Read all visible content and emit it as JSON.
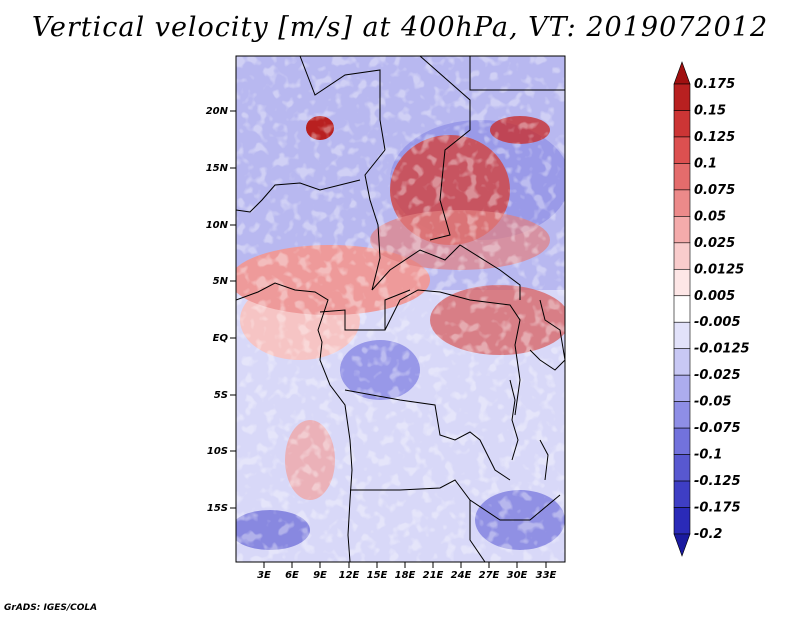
{
  "title": "Vertical velocity [m/s] at 400hPa, VT: 2019072012",
  "credit": "GrADS: IGES/COLA",
  "map": {
    "lon_range": [
      0,
      35
    ],
    "lat_range": [
      -20,
      25
    ],
    "lat_ticks": [
      "20N",
      "15N",
      "10N",
      "5N",
      "EQ",
      "5S",
      "10S",
      "15S"
    ],
    "lon_ticks": [
      "3E",
      "6E",
      "9E",
      "12E",
      "15E",
      "18E",
      "21E",
      "24E",
      "27E",
      "30E",
      "33E"
    ]
  },
  "chart_data": {
    "type": "heatmap",
    "title": "Vertical velocity [m/s] at 400hPa, VT: 2019072012",
    "variable": "Vertical velocity",
    "units": "m/s",
    "level": "400hPa",
    "valid_time": "2019072012",
    "colorbar": {
      "labels": [
        "0.175",
        "0.15",
        "0.125",
        "0.1",
        "0.075",
        "0.05",
        "0.025",
        "0.0125",
        "0.005",
        "-0.005",
        "-0.0125",
        "-0.025",
        "-0.05",
        "-0.075",
        "-0.1",
        "-0.125",
        "-0.175",
        "-0.2"
      ],
      "colors": [
        "#a01010",
        "#b82020",
        "#cc3535",
        "#dc5050",
        "#e46c6c",
        "#ec8a8a",
        "#f4abab",
        "#f9cccc",
        "#fde6e6",
        "#ffffff",
        "#e2e2fa",
        "#c8c8f4",
        "#acacee",
        "#8e8ee6",
        "#7272dc",
        "#5858d0",
        "#3e3ec4",
        "#2a2ab8",
        "#1a1aa0"
      ]
    }
  }
}
